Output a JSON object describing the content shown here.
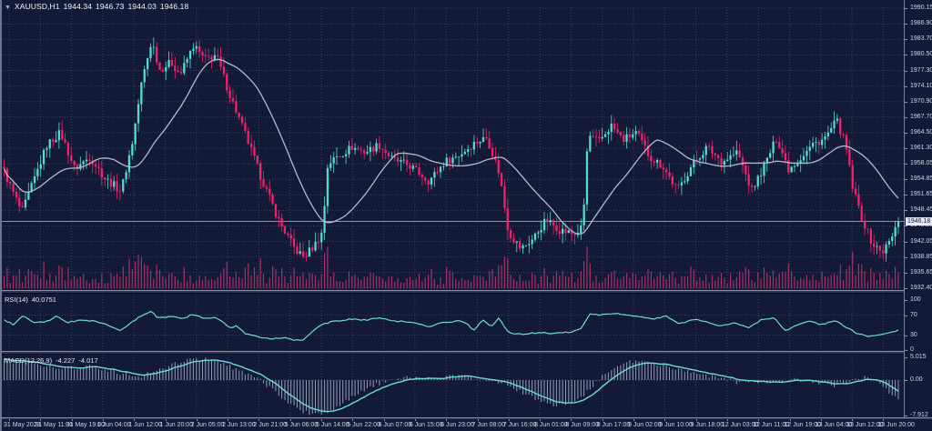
{
  "window": {
    "marker": "▼",
    "symbol_timeframe": "XAUUSD,H1",
    "ohlc": {
      "open": "1944.34",
      "high": "1946.73",
      "low": "1944.03",
      "close": "1946.18"
    }
  },
  "chart_data": {
    "type": "candlestick",
    "symbol": "XAUUSD",
    "timeframe": "H1",
    "bars": 294,
    "title_readout": "XAUUSD,H1 1944.34 1946.73 1944.03 1946.18",
    "price_axis": {
      "ticks": [
        "1990.15",
        "1986.90",
        "1983.70",
        "1980.50",
        "1977.30",
        "1974.10",
        "1970.90",
        "1967.70",
        "1964.50",
        "1961.30",
        "1958.05",
        "1954.85",
        "1951.65",
        "1948.45",
        "1945.25",
        "1942.05",
        "1938.85",
        "1935.65",
        "1932.40"
      ],
      "max": 1990.15,
      "min": 1932.4,
      "current": "1946.18",
      "current_value": 1946.18
    },
    "time_axis": {
      "labels": [
        "31 May 2023",
        "31 May 11:00",
        "31 May 19:00",
        "1 Jun 04:00",
        "1 Jun 12:00",
        "1 Jun 20:00",
        "2 Jun 05:00",
        "2 Jun 13:00",
        "2 Jun 21:00",
        "5 Jun 06:00",
        "5 Jun 14:00",
        "5 Jun 22:00",
        "6 Jun 07:00",
        "6 Jun 15:00",
        "6 Jun 23:00",
        "7 Jun 08:00",
        "7 Jun 16:00",
        "8 Jun 01:00",
        "8 Jun 09:00",
        "8 Jun 17:00",
        "9 Jun 02:00",
        "9 Jun 10:00",
        "9 Jun 18:00",
        "12 Jun 03:00",
        "12 Jun 11:00",
        "12 Jun 19:00",
        "13 Jun 04:00",
        "13 Jun 12:00",
        "13 Jun 20:00"
      ]
    },
    "price_path": [
      [
        0.0,
        1956.5
      ],
      [
        0.008,
        1953.0
      ],
      [
        0.02,
        1948.0
      ],
      [
        0.048,
        1962.0
      ],
      [
        0.063,
        1964.5
      ],
      [
        0.079,
        1957.0
      ],
      [
        0.096,
        1959.5
      ],
      [
        0.113,
        1955.0
      ],
      [
        0.131,
        1952.5
      ],
      [
        0.144,
        1963.0
      ],
      [
        0.154,
        1975.0
      ],
      [
        0.165,
        1983.5
      ],
      [
        0.174,
        1977.5
      ],
      [
        0.187,
        1979.0
      ],
      [
        0.197,
        1976.5
      ],
      [
        0.212,
        1982.5
      ],
      [
        0.224,
        1979.5
      ],
      [
        0.237,
        1980.5
      ],
      [
        0.253,
        1972.0
      ],
      [
        0.268,
        1965.0
      ],
      [
        0.288,
        1955.0
      ],
      [
        0.308,
        1946.0
      ],
      [
        0.325,
        1940.5
      ],
      [
        0.335,
        1938.8
      ],
      [
        0.348,
        1941.5
      ],
      [
        0.356,
        1944.0
      ],
      [
        0.362,
        1958.0
      ],
      [
        0.372,
        1959.5
      ],
      [
        0.389,
        1961.5
      ],
      [
        0.404,
        1960.5
      ],
      [
        0.419,
        1962.0
      ],
      [
        0.434,
        1959.0
      ],
      [
        0.455,
        1957.5
      ],
      [
        0.475,
        1954.5
      ],
      [
        0.493,
        1958.5
      ],
      [
        0.51,
        1960.0
      ],
      [
        0.527,
        1962.5
      ],
      [
        0.54,
        1963.5
      ],
      [
        0.554,
        1956.0
      ],
      [
        0.564,
        1944.0
      ],
      [
        0.578,
        1940.5
      ],
      [
        0.591,
        1942.5
      ],
      [
        0.606,
        1946.5
      ],
      [
        0.621,
        1944.5
      ],
      [
        0.638,
        1943.5
      ],
      [
        0.647,
        1945.0
      ],
      [
        0.653,
        1964.0
      ],
      [
        0.665,
        1962.5
      ],
      [
        0.679,
        1966.0
      ],
      [
        0.692,
        1963.0
      ],
      [
        0.707,
        1964.5
      ],
      [
        0.722,
        1959.5
      ],
      [
        0.737,
        1957.5
      ],
      [
        0.753,
        1952.5
      ],
      [
        0.77,
        1958.0
      ],
      [
        0.786,
        1961.5
      ],
      [
        0.803,
        1958.5
      ],
      [
        0.82,
        1960.5
      ],
      [
        0.836,
        1952.5
      ],
      [
        0.851,
        1958.0
      ],
      [
        0.864,
        1963.5
      ],
      [
        0.877,
        1957.0
      ],
      [
        0.889,
        1959.0
      ],
      [
        0.904,
        1962.0
      ],
      [
        0.919,
        1963.5
      ],
      [
        0.931,
        1967.0
      ],
      [
        0.941,
        1962.0
      ],
      [
        0.949,
        1953.0
      ],
      [
        0.96,
        1946.5
      ],
      [
        0.971,
        1941.5
      ],
      [
        0.982,
        1939.8
      ],
      [
        0.992,
        1942.5
      ],
      [
        1.0,
        1946.18
      ]
    ],
    "moving_average": {
      "period": 24,
      "color_note": "gray line over candles"
    },
    "rsi": {
      "label": "RSI(14)",
      "value": "40.0751",
      "scale_ticks": [
        "100",
        "70",
        "30",
        "0"
      ],
      "levels": [
        70,
        30
      ],
      "path": [
        [
          0.0,
          60
        ],
        [
          0.01,
          51
        ],
        [
          0.022,
          70
        ],
        [
          0.033,
          54
        ],
        [
          0.05,
          58
        ],
        [
          0.058,
          69
        ],
        [
          0.07,
          55
        ],
        [
          0.085,
          60
        ],
        [
          0.1,
          58
        ],
        [
          0.113,
          52
        ],
        [
          0.13,
          39
        ],
        [
          0.15,
          65
        ],
        [
          0.165,
          78
        ],
        [
          0.172,
          64
        ],
        [
          0.19,
          68
        ],
        [
          0.2,
          62
        ],
        [
          0.21,
          71
        ],
        [
          0.225,
          63
        ],
        [
          0.237,
          66
        ],
        [
          0.253,
          45
        ],
        [
          0.26,
          48
        ],
        [
          0.27,
          33
        ],
        [
          0.285,
          26
        ],
        [
          0.3,
          23
        ],
        [
          0.315,
          25
        ],
        [
          0.325,
          19
        ],
        [
          0.335,
          21
        ],
        [
          0.343,
          35
        ],
        [
          0.356,
          52
        ],
        [
          0.37,
          58
        ],
        [
          0.39,
          62
        ],
        [
          0.405,
          60
        ],
        [
          0.42,
          64
        ],
        [
          0.435,
          58
        ],
        [
          0.455,
          56
        ],
        [
          0.475,
          47
        ],
        [
          0.49,
          55
        ],
        [
          0.508,
          58
        ],
        [
          0.517,
          54
        ],
        [
          0.525,
          39
        ],
        [
          0.535,
          60
        ],
        [
          0.545,
          48
        ],
        [
          0.553,
          63
        ],
        [
          0.565,
          34
        ],
        [
          0.58,
          32
        ],
        [
          0.6,
          35
        ],
        [
          0.615,
          33
        ],
        [
          0.632,
          36
        ],
        [
          0.645,
          42
        ],
        [
          0.655,
          73
        ],
        [
          0.667,
          70
        ],
        [
          0.68,
          73
        ],
        [
          0.695,
          71
        ],
        [
          0.71,
          67
        ],
        [
          0.725,
          62
        ],
        [
          0.74,
          68
        ],
        [
          0.755,
          52
        ],
        [
          0.77,
          62
        ],
        [
          0.785,
          57
        ],
        [
          0.8,
          48
        ],
        [
          0.818,
          55
        ],
        [
          0.832,
          45
        ],
        [
          0.848,
          62
        ],
        [
          0.862,
          64
        ],
        [
          0.873,
          38
        ],
        [
          0.885,
          48
        ],
        [
          0.9,
          57
        ],
        [
          0.915,
          51
        ],
        [
          0.93,
          60
        ],
        [
          0.942,
          45
        ],
        [
          0.955,
          32
        ],
        [
          0.968,
          27
        ],
        [
          0.978,
          29
        ],
        [
          0.988,
          33
        ],
        [
          1.0,
          40
        ]
      ]
    },
    "macd": {
      "label": "MACD(12,26,9)",
      "macd_value": "-4.227",
      "signal_value": "-4.017",
      "scale_ticks": [
        "5.015",
        "0.00",
        "-7.912"
      ],
      "scale_max": 5.015,
      "scale_min": -7.912,
      "path": [
        [
          0.0,
          4.4
        ],
        [
          0.05,
          3.0
        ],
        [
          0.08,
          2.6
        ],
        [
          0.096,
          3.0
        ],
        [
          0.12,
          2.0
        ],
        [
          0.15,
          0.7
        ],
        [
          0.17,
          2.0
        ],
        [
          0.197,
          4.0
        ],
        [
          0.215,
          4.6
        ],
        [
          0.23,
          4.5
        ],
        [
          0.25,
          3.2
        ],
        [
          0.27,
          1.6
        ],
        [
          0.285,
          0.2
        ],
        [
          0.3,
          -2.2
        ],
        [
          0.313,
          -4.4
        ],
        [
          0.33,
          -6.6
        ],
        [
          0.345,
          -7.6
        ],
        [
          0.36,
          -7.2
        ],
        [
          0.375,
          -5.6
        ],
        [
          0.395,
          -3.2
        ],
        [
          0.415,
          -1.2
        ],
        [
          0.43,
          0.1
        ],
        [
          0.45,
          0.7
        ],
        [
          0.48,
          0.5
        ],
        [
          0.51,
          0.9
        ],
        [
          0.53,
          0.4
        ],
        [
          0.555,
          -0.5
        ],
        [
          0.575,
          -2.2
        ],
        [
          0.595,
          -4.4
        ],
        [
          0.615,
          -5.6
        ],
        [
          0.64,
          -4.6
        ],
        [
          0.655,
          -2.0
        ],
        [
          0.67,
          1.0
        ],
        [
          0.687,
          3.2
        ],
        [
          0.705,
          4.3
        ],
        [
          0.72,
          4.0
        ],
        [
          0.737,
          3.3
        ],
        [
          0.768,
          1.9
        ],
        [
          0.798,
          0.5
        ],
        [
          0.82,
          -0.5
        ],
        [
          0.84,
          -0.55
        ],
        [
          0.862,
          -0.35
        ],
        [
          0.888,
          0.1
        ],
        [
          0.908,
          -0.6
        ],
        [
          0.925,
          -1.3
        ],
        [
          0.945,
          -0.4
        ],
        [
          0.963,
          0.6
        ],
        [
          0.978,
          -0.8
        ],
        [
          0.99,
          -2.8
        ],
        [
          1.0,
          -4.0
        ]
      ]
    },
    "colors": {
      "background": "#121a38",
      "grid": "#454e73",
      "bull": "#53dcd3",
      "bear": "#f1226b",
      "ma_line": "#b6bac6",
      "indicator_line": "#6fd9de",
      "histogram": "#c3c9da",
      "volume": "#aa2f63",
      "axis_text": "#cdd3e4",
      "price_line": "#9aa1b5",
      "price_tag_bg": "#e6e9f2",
      "price_tag_text": "#10173a"
    }
  }
}
